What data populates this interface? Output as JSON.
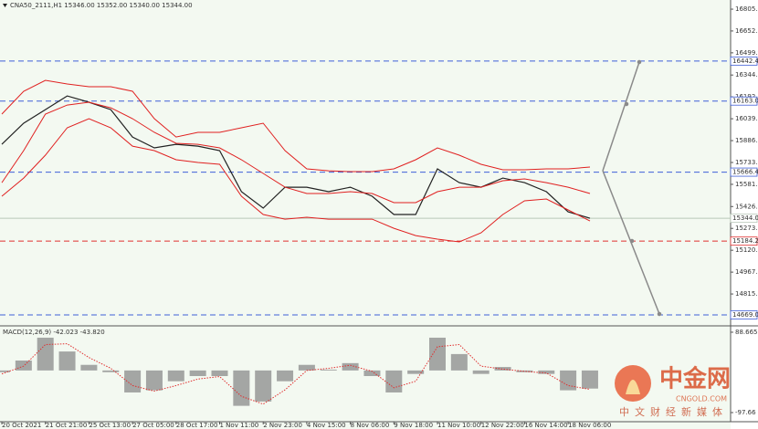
{
  "chart_data": [
    {
      "type": "line",
      "title": "CNA50_2111,H1 15346.00 15352.00 15340.00 15344.00",
      "categories": [
        "20 Oct 2021",
        null,
        "21 Oct 21:00",
        null,
        "25 Oct 13:00",
        null,
        "27 Oct 05:00",
        null,
        "28 Oct 17:00",
        null,
        "1 Nov 11:00",
        null,
        "2 Nov 23:00",
        null,
        "4 Nov 15:00",
        null,
        "8 Nov 06:00",
        null,
        "9 Nov 18:00",
        null,
        "11 Nov 10:00",
        null,
        "12 Nov 22:00",
        null,
        "16 Nov 14:00",
        null,
        "18 Nov 06:00",
        null
      ],
      "series": [
        {
          "color": "#222222",
          "values": [
            15861,
            16008,
            16103,
            16199,
            16155,
            16103,
            15912,
            15836,
            15861,
            15848,
            15817,
            15530,
            15415,
            15561,
            15561,
            15530,
            15561,
            15498,
            15370,
            15370,
            15689,
            15593,
            15561,
            15625,
            15593,
            15530,
            15389,
            15344
          ]
        },
        {
          "color": "#e02020",
          "values": [
            16072,
            16231,
            16308,
            16282,
            16263,
            16263,
            16231,
            16040,
            15912,
            15944,
            15944,
            15976,
            16008,
            15817,
            15689,
            15676,
            15670,
            15670,
            15689,
            15753,
            15836,
            15785,
            15721,
            15683,
            15683,
            15689,
            15689,
            15702
          ]
        },
        {
          "color": "#e02020",
          "values": [
            15593,
            15817,
            16072,
            16135,
            16155,
            16116,
            16040,
            15944,
            15868,
            15861,
            15836,
            15753,
            15657,
            15561,
            15517,
            15517,
            15530,
            15517,
            15453,
            15453,
            15530,
            15561,
            15561,
            15606,
            15619,
            15593,
            15561,
            15517
          ]
        },
        {
          "color": "#e02020",
          "values": [
            15498,
            15625,
            15785,
            15976,
            16040,
            15976,
            15848,
            15817,
            15753,
            15734,
            15721,
            15498,
            15370,
            15338,
            15351,
            15338,
            15338,
            15338,
            15274,
            15223,
            15198,
            15179,
            15242,
            15370,
            15466,
            15479,
            15402,
            15325
          ]
        }
      ],
      "ylim": [
        14605,
        16869
      ],
      "yticks": [
        {
          "value": 16805,
          "label": "16805.00"
        },
        {
          "value": 16652.7,
          "label": "16652.70"
        },
        16499.95,
        16344.85,
        {
          "value": 16192.1,
          "label": "16192.10"
        },
        16039.35,
        {
          "value": 15886.6,
          "label": "15886.60"
        },
        15733.85,
        {
          "value": 15581.1,
          "label": "15581.10"
        },
        {
          "value": 15426,
          "label": "15426.00"
        },
        15273.25,
        {
          "value": 15120.5,
          "label": "15120.50"
        },
        14967.75,
        {
          "value": 14815,
          "label": "14815.00"
        }
      ],
      "levels": [
        {
          "value": 16442.48,
          "color": "#3f5fd8",
          "style": "dashed"
        },
        {
          "value": 16163,
          "label": "16163.00",
          "color": "#3f5fd8",
          "style": "dashed"
        },
        {
          "value": 15666.41,
          "color": "#3f5fd8",
          "style": "dashed"
        },
        {
          "value": 15344,
          "label": "15344.00",
          "color": "#b8c8b8",
          "style": "solid"
        },
        {
          "value": 15184.26,
          "color": "#e03030",
          "style": "dashed"
        },
        {
          "value": 14669.06,
          "color": "#3f5fd8",
          "style": "dashed"
        }
      ]
    },
    {
      "type": "bar",
      "title": "MACD(12,26,9) -42.023 -43.820",
      "series": [
        {
          "kind": "bar",
          "color": "#8a8a8a",
          "values": [
            -4,
            23,
            76,
            44,
            13,
            -4,
            -51,
            -46,
            -25,
            -13,
            -13,
            -82,
            -72,
            -25,
            13,
            2,
            17,
            -13,
            -51,
            -8,
            76,
            38,
            -8,
            8,
            -4,
            -8,
            -46,
            -42.023
          ]
        },
        {
          "kind": "line",
          "color": "#e03030",
          "values": [
            -8,
            10,
            60,
            62,
            30,
            5,
            -35,
            -48,
            -35,
            -20,
            -14,
            -60,
            -78,
            -45,
            0,
            5,
            12,
            -2,
            -40,
            -25,
            55,
            60,
            10,
            3,
            -2,
            -6,
            -35,
            -43.82
          ]
        }
      ],
      "ylim": [
        -118.8,
        101.3
      ],
      "yticks": [
        88.665,
        -97.66
      ]
    }
  ],
  "watermark": {
    "name": "中金网",
    "site": "CNGOLD.COM",
    "slogan": "中文财经新媒体"
  }
}
